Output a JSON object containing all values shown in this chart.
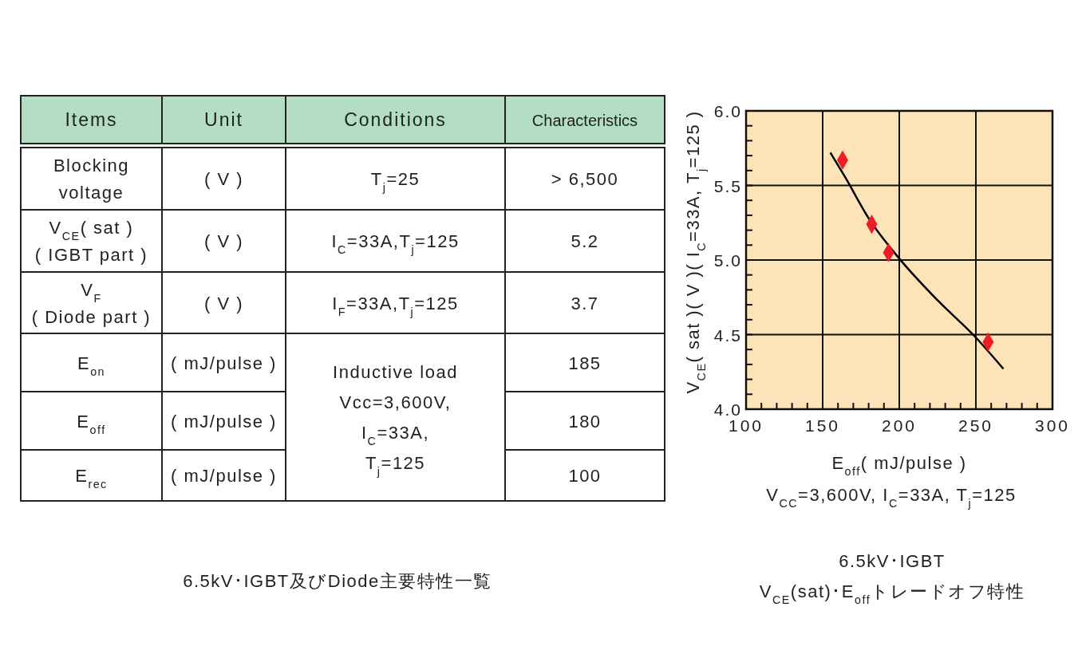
{
  "chart_data": [
    {
      "type": "other",
      "title": "6.5kV･IGBT及びDiode主要特性一覧",
      "categories": [
        "Items",
        "Unit",
        "Conditions",
        "Characteristics"
      ],
      "cell_labels": [
        [
          "Blocking\nvoltage",
          "( V )",
          "T$_{j}$=25",
          "> 6,500"
        ],
        [
          "V$_{CE}$( sat )\n( IGBT part )",
          "( V )",
          "I$_{C}$=33A,T$_{j}$=125",
          "5.2"
        ],
        [
          "V$_{F}$\n( Diode part )",
          "( V )",
          "I$_{F}$=33A,T$_{j}$=125",
          "3.7"
        ],
        [
          "E$_{on}$",
          "( mJ/pulse )",
          "Inductive load\nVcc=3,600V,\nI$_{C}$=33A,\nT$_{j}$=125",
          "185"
        ],
        [
          "E$_{off}$",
          "( mJ/pulse )",
          null,
          "180"
        ],
        [
          "E$_{rec}$",
          "( mJ/pulse )",
          null,
          "100"
        ]
      ]
    },
    {
      "type": "scatter",
      "title": "6.5kV･IGBT\nV$_{CE}$(sat)･E$_{off}$トレードオフ特性",
      "subtitle": "V$_{CC}$=3,600V, I$_{C}$=33A, T$_{j}$=125",
      "xlabel": "E$_{off}$( mJ/pulse )",
      "ylabel": "V$_{CE}$( sat )( V )( I$_{C}$=33A, T$_{j}$=125 )",
      "xlim": [
        100,
        300
      ],
      "ylim": [
        4,
        6
      ],
      "grid": true,
      "xticks": [
        100,
        {
          "value": 110,
          "label": null
        },
        {
          "value": 120,
          "label": null
        },
        {
          "value": 130,
          "label": null
        },
        {
          "value": 140,
          "label": null
        },
        150,
        {
          "value": 160,
          "label": null
        },
        {
          "value": 170,
          "label": null
        },
        {
          "value": 180,
          "label": null
        },
        {
          "value": 190,
          "label": null
        },
        200,
        {
          "value": 210,
          "label": null
        },
        {
          "value": 220,
          "label": null
        },
        {
          "value": 230,
          "label": null
        },
        {
          "value": 240,
          "label": null
        },
        250,
        {
          "value": 260,
          "label": null
        },
        {
          "value": 270,
          "label": null
        },
        {
          "value": 280,
          "label": null
        },
        {
          "value": 290,
          "label": null
        },
        300
      ],
      "yticks": [
        {
          "value": 4,
          "label": "4.0"
        },
        {
          "value": 4.1,
          "label": null
        },
        {
          "value": 4.2,
          "label": null
        },
        {
          "value": 4.3,
          "label": null
        },
        {
          "value": 4.4,
          "label": null
        },
        4.5,
        {
          "value": 4.6,
          "label": null
        },
        {
          "value": 4.7,
          "label": null
        },
        {
          "value": 4.8,
          "label": null
        },
        {
          "value": 4.9,
          "label": null
        },
        {
          "value": 5,
          "label": "5.0"
        },
        {
          "value": 5.1,
          "label": null
        },
        {
          "value": 5.2,
          "label": null
        },
        {
          "value": 5.3,
          "label": null
        },
        {
          "value": 5.4,
          "label": null
        },
        5.5,
        {
          "value": 5.6,
          "label": null
        },
        {
          "value": 5.7,
          "label": null
        },
        {
          "value": 5.8,
          "label": null
        },
        {
          "value": 5.9,
          "label": null
        },
        {
          "value": 6,
          "label": "6.0"
        }
      ],
      "series": [
        {
          "type": "line",
          "marker": "none",
          "color": "#000000",
          "x": [
            155,
            165,
            180,
            200,
            225,
            250,
            268
          ],
          "values": [
            5.72,
            5.55,
            5.28,
            5.01,
            4.73,
            4.48,
            4.27
          ]
        },
        {
          "type": "scatter",
          "marker": "diamond",
          "color": "#ee1c25",
          "x": [
            163,
            182,
            193,
            258
          ],
          "values": [
            5.67,
            5.24,
            5.05,
            4.45
          ]
        }
      ]
    }
  ]
}
